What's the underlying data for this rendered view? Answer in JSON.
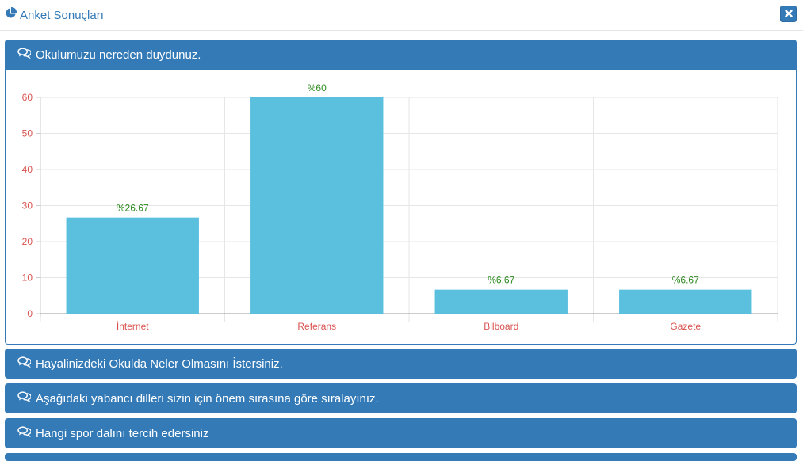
{
  "header": {
    "title": "Anket Sonuçları",
    "title_icon": "pie-chart-icon",
    "close_icon": "close-icon"
  },
  "colors": {
    "primary": "#337ab7",
    "bar": "#5bc0de",
    "tick": "#d9534f",
    "data_label": "#2b8a1e"
  },
  "panels": [
    {
      "question": "Okulumuzu nereden duydunuz.",
      "icon": "comments-icon",
      "expanded": true
    },
    {
      "question": "Hayalinizdeki Okulda Neler Olmasını İstersiniz.",
      "icon": "comments-icon",
      "expanded": false
    },
    {
      "question": "Aşağıdaki yabancı dilleri sizin için önem sırasına göre sıralayınız.",
      "icon": "comments-icon",
      "expanded": false
    },
    {
      "question": "Hangi spor dalını tercih edersiniz",
      "icon": "comments-icon",
      "expanded": false
    }
  ],
  "chart_data": {
    "type": "bar",
    "categories": [
      "İnternet",
      "Referans",
      "Bilboard",
      "Gazete"
    ],
    "values": [
      26.67,
      60,
      6.67,
      6.67
    ],
    "labels": [
      "%26.67",
      "%60",
      "%6.67",
      "%6.67"
    ],
    "yticks": [
      "0",
      "10",
      "20",
      "30",
      "40",
      "50",
      "60"
    ],
    "ylim": [
      0,
      60
    ],
    "grid": true,
    "legend": "none"
  }
}
